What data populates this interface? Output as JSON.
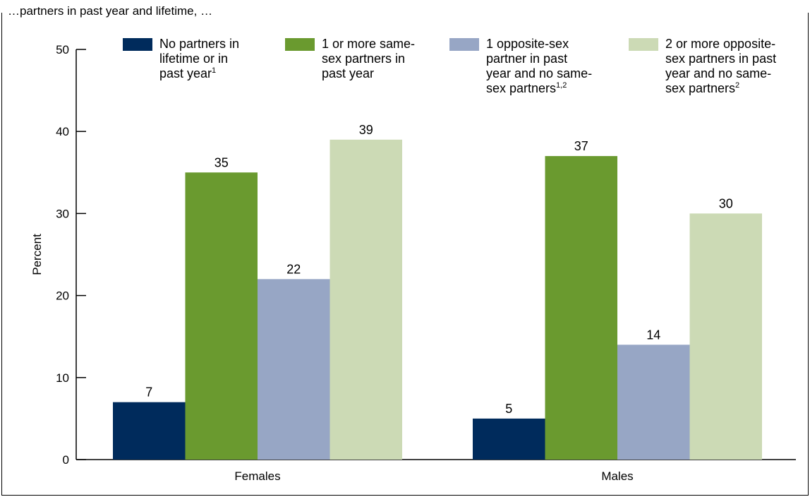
{
  "caption_clipped": "…partners in past year and lifetime, …",
  "chart_data": {
    "type": "bar",
    "categories": [
      "Females",
      "Males"
    ],
    "ylabel": "Percent",
    "xlabel": "",
    "ylim": [
      0,
      50
    ],
    "yticks": [
      0,
      10,
      20,
      30,
      40,
      50
    ],
    "grid": false,
    "legend_position": "top",
    "series": [
      {
        "name": "No partners in lifetime or in past year¹",
        "legend_lines": [
          "No partners in",
          "lifetime or in",
          "past year"
        ],
        "legend_sup": "1",
        "color": "#002b5c",
        "values": [
          7,
          5
        ]
      },
      {
        "name": "1 or more same-sex partners in past year",
        "legend_lines": [
          "1 or more same-",
          "sex partners in",
          "past year"
        ],
        "legend_sup": "",
        "color": "#6a9a2f",
        "values": [
          35,
          37
        ]
      },
      {
        "name": "1 opposite-sex partner in past year and no same-sex partners¹,²",
        "legend_lines": [
          "1 opposite-sex",
          "partner in past",
          "year and no same-",
          "sex partners"
        ],
        "legend_sup": "1,2",
        "color": "#97a6c5",
        "values": [
          22,
          14
        ]
      },
      {
        "name": "2 or more opposite-sex partners in past year and no same-sex partners²",
        "legend_lines": [
          "2 or more opposite-",
          "sex partners in past",
          "year and no same-",
          "sex partners"
        ],
        "legend_sup": "2",
        "color": "#ccdab5",
        "values": [
          39,
          30
        ]
      }
    ]
  }
}
